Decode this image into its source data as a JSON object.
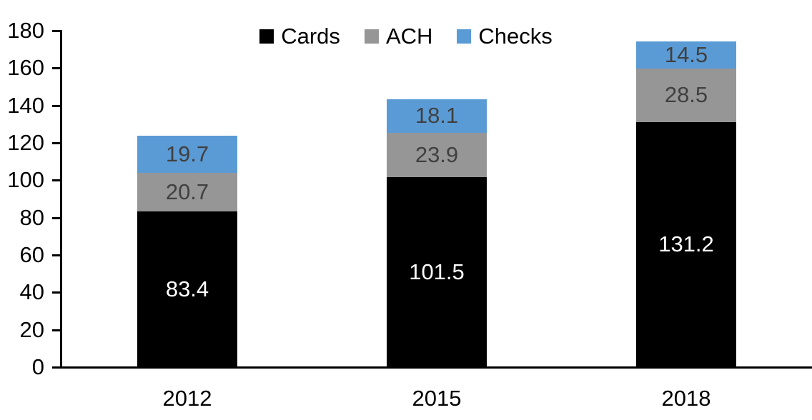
{
  "chart_data": {
    "type": "bar",
    "stacked": true,
    "title": "",
    "xlabel": "",
    "ylabel": "",
    "categories": [
      "2012",
      "2015",
      "2018"
    ],
    "series": [
      {
        "name": "Cards",
        "color": "#000000",
        "label_color": "#ffffff",
        "values": [
          83.4,
          101.5,
          131.2
        ]
      },
      {
        "name": "ACH",
        "color": "#969696",
        "label_color": "#404040",
        "values": [
          20.7,
          23.9,
          28.5
        ]
      },
      {
        "name": "Checks",
        "color": "#5B9BD5",
        "label_color": "#404040",
        "values": [
          19.7,
          18.1,
          14.5
        ]
      }
    ],
    "ylim": [
      0,
      180
    ],
    "ytick_step": 20,
    "y_axis_ticks": [
      0,
      20,
      40,
      60,
      80,
      100,
      120,
      140,
      160,
      180
    ],
    "grid": false,
    "legend_position": "top-center",
    "axis_color": "#000000",
    "background_color": "#ffffff",
    "value_labels_shown": true,
    "value_label_decimals": 1
  }
}
